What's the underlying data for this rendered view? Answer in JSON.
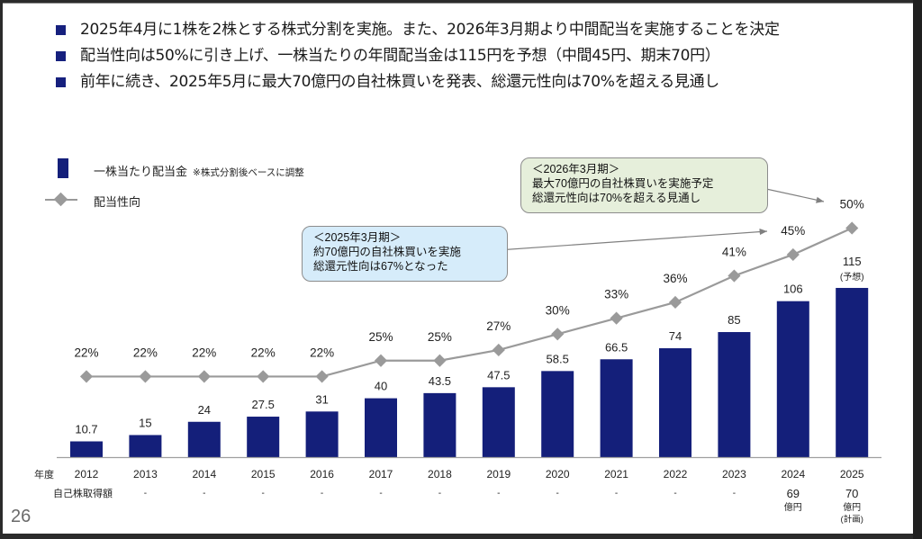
{
  "bullets": [
    "2025年4月に1株を2株とする株式分割を実施。また、2026年3月期より中間配当を実施することを決定",
    "配当性向は50%に引き上げ、一株当たりの年間配当金は115円を予想（中間45円、期末70円）",
    "前年に続き、2025年5月に最大70億円の自社株買いを発表、総還元性向は70%を超える見通し"
  ],
  "legend": {
    "bar_label": "一株当たり配当金",
    "bar_note": "※株式分割後ベースに調整",
    "line_label": "配当性向"
  },
  "callouts": {
    "fy2025": [
      "＜2025年3月期＞",
      "約70億円の自社株買いを実施",
      "総還元性向は67%となった"
    ],
    "fy2026": [
      "＜2026年3月期＞",
      "最大70億円の自社株買いを実施予定",
      "総還元性向は70%を超える見通し"
    ]
  },
  "table": {
    "year_header": "年度",
    "buyback_header": "自己株取得額",
    "buyback": [
      "-",
      "-",
      "-",
      "-",
      "-",
      "-",
      "-",
      "-",
      "-",
      "-",
      "-",
      "-",
      "69",
      "70"
    ],
    "buyback_unit": "億円",
    "buyback_plan_note": "(計画)"
  },
  "page_number": "26",
  "colors": {
    "bar": "#141f7a",
    "line": "#9a9a9a",
    "callout_blue": "#d6ecfa",
    "callout_green": "#e6efdb",
    "bullet": "#16207e"
  },
  "chart_data": {
    "type": "bar",
    "categories": [
      "2012",
      "2013",
      "2014",
      "2015",
      "2016",
      "2017",
      "2018",
      "2019",
      "2020",
      "2021",
      "2022",
      "2023",
      "2024",
      "2025"
    ],
    "series": [
      {
        "name": "一株当たり配当金",
        "type": "bar",
        "values": [
          10.7,
          15,
          24,
          27.5,
          31,
          40,
          43.5,
          47.5,
          58.5,
          66.5,
          74,
          85,
          106,
          115
        ],
        "labels": [
          "10.7",
          "15",
          "24",
          "27.5",
          "31",
          "40",
          "43.5",
          "47.5",
          "58.5",
          "66.5",
          "74",
          "85",
          "106",
          "115"
        ],
        "annotations": {
          "2025": "(予想)"
        }
      },
      {
        "name": "配当性向",
        "type": "line",
        "unit": "%",
        "values": [
          22,
          22,
          22,
          22,
          22,
          25,
          25,
          27,
          30,
          33,
          36,
          41,
          45,
          50
        ],
        "labels": [
          "22%",
          "22%",
          "22%",
          "22%",
          "22%",
          "25%",
          "25%",
          "27%",
          "30%",
          "33%",
          "36%",
          "41%",
          "45%",
          "50%"
        ]
      }
    ],
    "title": "",
    "xlabel": "年度",
    "ylabel": "",
    "grid": false,
    "legend": "top-left"
  }
}
